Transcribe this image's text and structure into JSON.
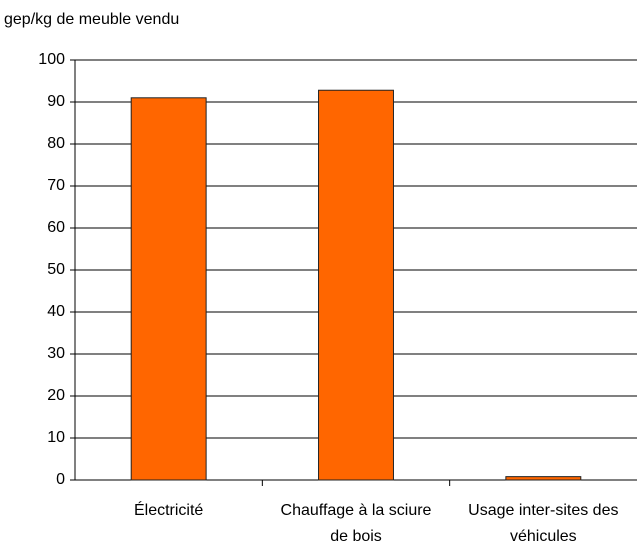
{
  "chart_data": {
    "type": "bar",
    "y_label": "gep/kg de meuble vendu",
    "categories": [
      "Électricité",
      "Chauffage à la sciure de bois",
      "Usage inter-sites des véhicules"
    ],
    "values": [
      91,
      92.8,
      0.8
    ],
    "color": "#ff6600",
    "ylim": [
      0,
      100
    ],
    "yticks": [
      0,
      10,
      20,
      30,
      40,
      50,
      60,
      70,
      80,
      90,
      100
    ],
    "grid": true
  }
}
